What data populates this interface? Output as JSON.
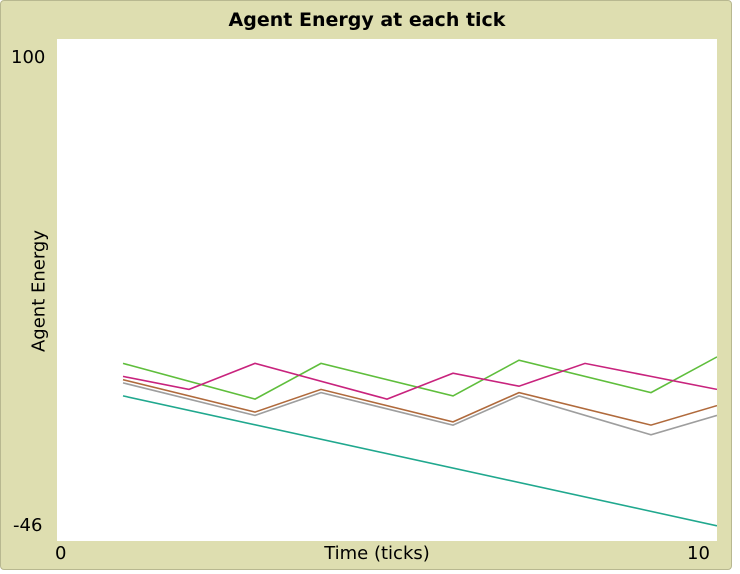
{
  "chart_data": {
    "type": "line",
    "title": "Agent Energy at each tick",
    "xlabel": "Time (ticks)",
    "ylabel": "Agent Energy",
    "xlim": [
      0,
      10
    ],
    "ylim": [
      -46,
      100
    ],
    "x_tick_labels": [
      "0",
      "10"
    ],
    "y_tick_labels": [
      "100",
      "-46"
    ],
    "grid": false,
    "series": [
      {
        "color": "#5fbe3c",
        "x": [
          1,
          3,
          4,
          6,
          7,
          9,
          10
        ],
        "y": [
          5,
          -6,
          5,
          -5,
          6,
          -4,
          7
        ]
      },
      {
        "color": "#c8237d",
        "x": [
          1,
          2,
          3,
          5,
          6,
          7,
          8,
          9,
          10
        ],
        "y": [
          1,
          -3,
          5,
          -6,
          2,
          -2,
          5,
          1,
          -3
        ]
      },
      {
        "color": "#b06a3c",
        "x": [
          1,
          3,
          4,
          6,
          7,
          9,
          10
        ],
        "y": [
          0,
          -10,
          -3,
          -13,
          -4,
          -14,
          -8
        ]
      },
      {
        "color": "#9e9e9e",
        "x": [
          1,
          3,
          4,
          6,
          7,
          9,
          10
        ],
        "y": [
          -1,
          -11,
          -4,
          -14,
          -5,
          -17,
          -11
        ]
      },
      {
        "color": "#20a88e",
        "x": [
          1,
          10
        ],
        "y": [
          -5,
          -45
        ]
      }
    ]
  }
}
